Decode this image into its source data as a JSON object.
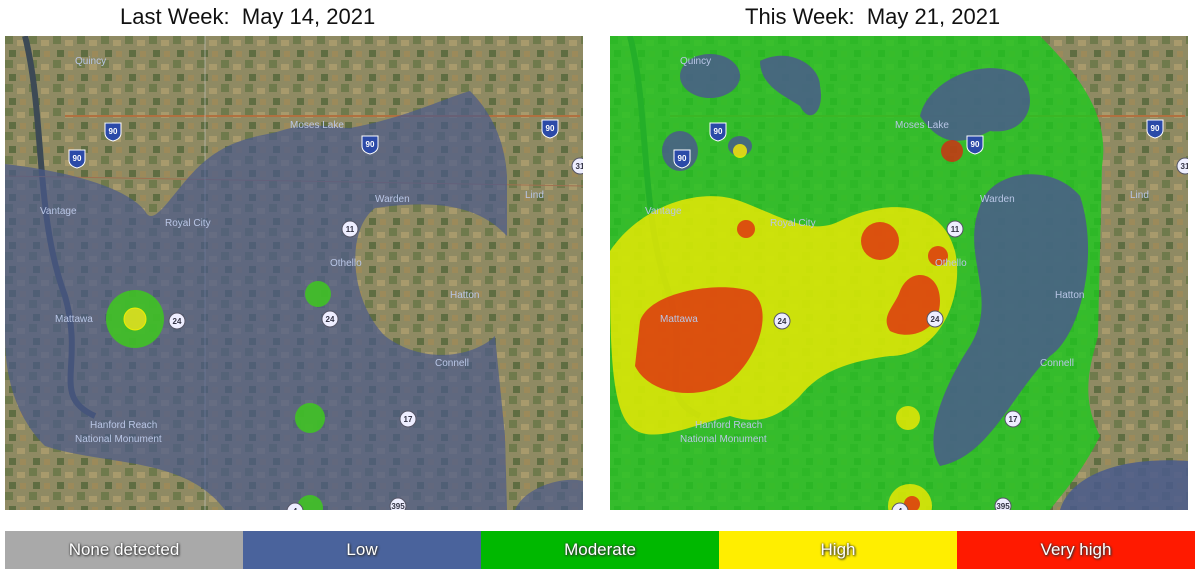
{
  "panels": [
    {
      "title": "Last Week:  May 14, 2021"
    },
    {
      "title": "This Week:  May 21, 2021"
    }
  ],
  "map_labels": [
    "Quincy",
    "Moses Lake",
    "Vantage",
    "Royal City",
    "Warden",
    "Lind",
    "Othello",
    "Hatton",
    "Mattawa",
    "Connell",
    "Hanford Reach",
    "National Monument"
  ],
  "road_shields": [
    {
      "label": "90",
      "type": "interstate"
    },
    {
      "label": "90",
      "type": "interstate"
    },
    {
      "label": "90",
      "type": "interstate"
    },
    {
      "label": "90",
      "type": "interstate"
    },
    {
      "label": "11",
      "type": "state"
    },
    {
      "label": "24",
      "type": "state"
    },
    {
      "label": "24",
      "type": "state"
    },
    {
      "label": "17",
      "type": "state"
    },
    {
      "label": "395",
      "type": "us"
    },
    {
      "label": "4",
      "type": "us"
    },
    {
      "label": "31",
      "type": "state"
    }
  ],
  "legend": [
    {
      "label": "None detected",
      "color": "#a9a9a9"
    },
    {
      "label": "Low",
      "color": "#4a639c"
    },
    {
      "label": "Moderate",
      "color": "#00b800"
    },
    {
      "label": "High",
      "color": "#ffee00"
    },
    {
      "label": "Very high",
      "color": "#ff1a00"
    }
  ]
}
